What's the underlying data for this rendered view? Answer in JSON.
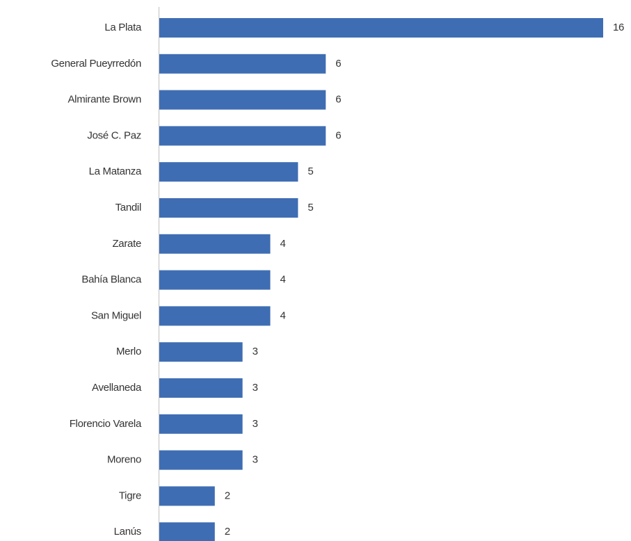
{
  "chart_data": {
    "type": "bar",
    "orientation": "horizontal",
    "color": "#3f6db3",
    "categories": [
      "La Plata",
      "General Pueyrredón",
      "Almirante Brown",
      "José C. Paz",
      "La Matanza",
      "Tandil",
      "Zarate",
      "Bahía Blanca",
      "San Miguel",
      "Merlo",
      "Avellaneda",
      "Florencio Varela",
      "Moreno",
      "Tigre",
      "Lanús"
    ],
    "values": [
      16,
      6,
      6,
      6,
      5,
      5,
      4,
      4,
      4,
      3,
      3,
      3,
      3,
      2,
      2
    ]
  }
}
